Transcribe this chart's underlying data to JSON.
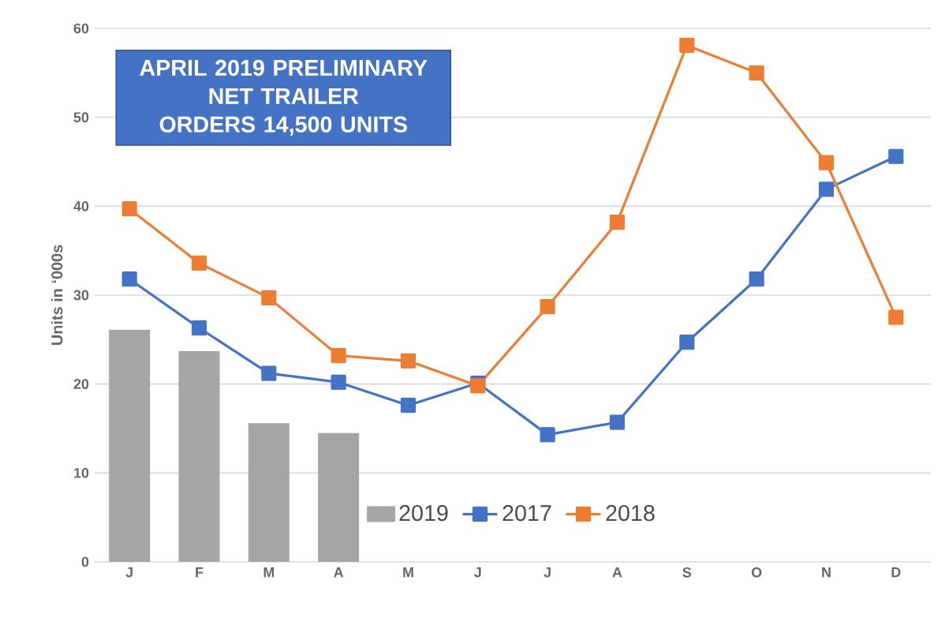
{
  "chart_data": {
    "type": "bar",
    "ylabel": "Units in ‘000s",
    "categories": [
      "J",
      "F",
      "M",
      "A",
      "M",
      "J",
      "J",
      "A",
      "S",
      "O",
      "N",
      "D"
    ],
    "series": [
      {
        "name": "2019",
        "color": "#a5a5a5",
        "values": [
          26.1,
          23.7,
          15.6,
          14.5,
          null,
          null,
          null,
          null,
          null,
          null,
          null,
          null
        ]
      },
      {
        "name": "2017",
        "type": "line",
        "color": "#4472c4",
        "marker": "square",
        "values": [
          31.8,
          26.3,
          21.2,
          20.2,
          17.6,
          20.1,
          14.3,
          15.7,
          24.7,
          31.8,
          41.9,
          45.6
        ]
      },
      {
        "name": "2018",
        "type": "line",
        "color": "#ed7d31",
        "marker": "square",
        "values": [
          39.7,
          33.6,
          29.7,
          23.2,
          22.6,
          19.8,
          28.7,
          38.2,
          58.1,
          55.0,
          44.9,
          27.5
        ]
      }
    ],
    "ylim": [
      0,
      60
    ],
    "yticks": [
      0,
      10,
      20,
      30,
      40,
      50,
      60
    ],
    "grid": "y",
    "legend": "bottom",
    "annotations": [
      "APRIL 2019 PRELIMINARY NET TRAILER ORDERS 14,500 UNITS"
    ]
  }
}
